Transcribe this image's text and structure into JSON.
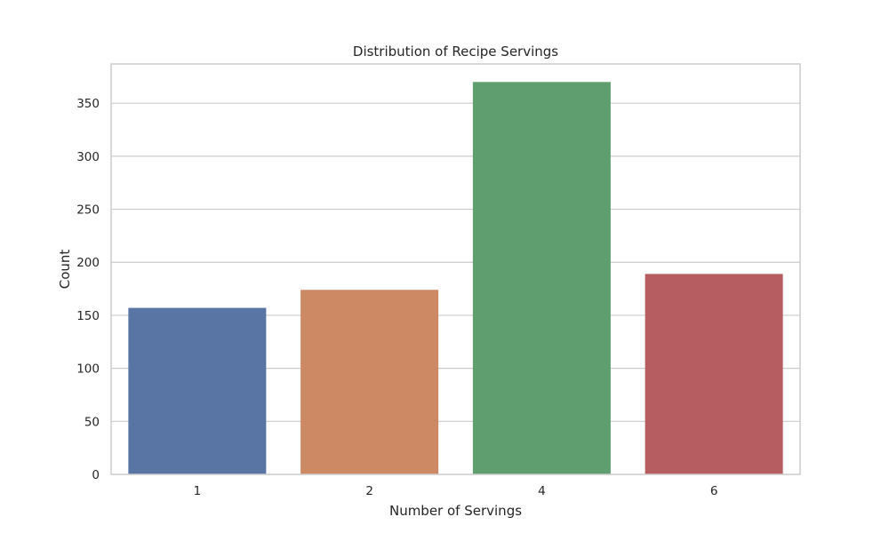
{
  "chart_data": {
    "type": "bar",
    "title": "Distribution of Recipe Servings",
    "xlabel": "Number of Servings",
    "ylabel": "Count",
    "categories": [
      "1",
      "2",
      "4",
      "6"
    ],
    "values": [
      157,
      174,
      370,
      189
    ],
    "colors": [
      "#5875a4",
      "#cc8963",
      "#5f9e6e",
      "#b55d60"
    ],
    "ylim": [
      0,
      387
    ],
    "yticks": [
      0,
      50,
      100,
      150,
      200,
      250,
      300,
      350
    ],
    "ytick_labels": [
      "0",
      "50",
      "100",
      "150",
      "200",
      "250",
      "300",
      "350"
    ],
    "grid": "horizontal",
    "legend": "none"
  }
}
